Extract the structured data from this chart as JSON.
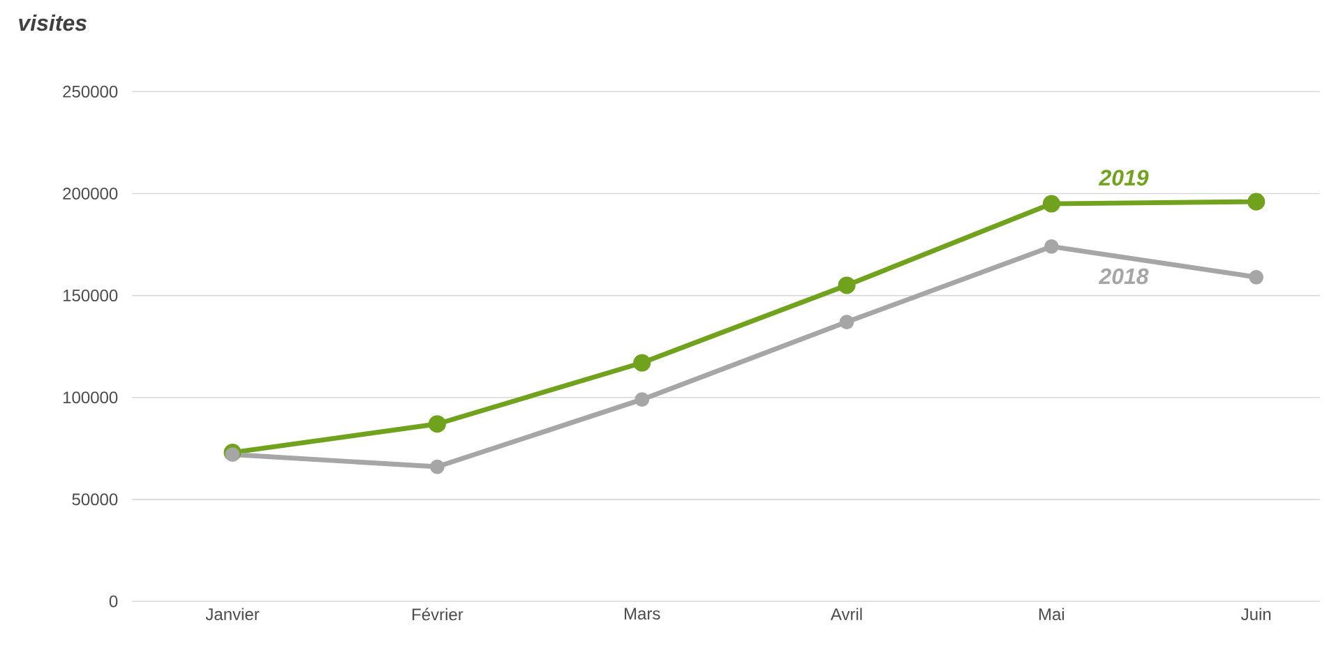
{
  "chart_data": {
    "type": "line",
    "ylabel": "visites",
    "categories": [
      "Janvier",
      "Février",
      "Mars",
      "Avril",
      "Mai",
      "Juin"
    ],
    "series": [
      {
        "name": "2019",
        "color": "#70a21e",
        "values": [
          73000,
          87000,
          117000,
          155000,
          195000,
          196000
        ]
      },
      {
        "name": "2018",
        "color": "#a6a6a6",
        "values": [
          72000,
          66000,
          99000,
          137000,
          174000,
          159000
        ]
      }
    ],
    "ylim": [
      0,
      250000
    ],
    "yticks": [
      0,
      50000,
      100000,
      150000,
      200000,
      250000
    ],
    "grid": "y",
    "legend": false,
    "marker": "circle",
    "line_style": "solid"
  }
}
